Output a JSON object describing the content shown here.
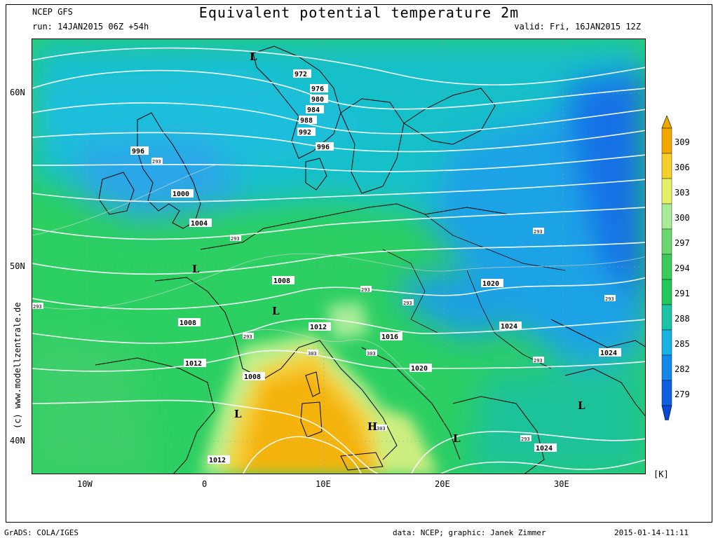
{
  "header": {
    "model": "NCEP GFS",
    "run": "run: 14JAN2015 06Z +54h",
    "title": "Equivalent potential temperature 2m",
    "valid": "valid: Fri, 16JAN2015 12Z"
  },
  "footer": {
    "grads": "GrADS: COLA/IGES",
    "credit": "data: NCEP; graphic: Janek Zimmer",
    "timestamp": "2015-01-14-11:11"
  },
  "watermark": "(c)  www.modellzentrale.de",
  "axes": {
    "lat_labels": [
      "60N",
      "50N",
      "40N"
    ],
    "lon_labels": [
      "10W",
      "0",
      "10E",
      "20E",
      "30E"
    ],
    "unit": "[K]"
  },
  "colorbar": {
    "ticks": [
      "309",
      "306",
      "303",
      "300",
      "297",
      "294",
      "291",
      "288",
      "285",
      "282",
      "279"
    ],
    "colors": [
      "#f2a800",
      "#f6cf2a",
      "#e6ef6a",
      "#a8ec98",
      "#6ad86e",
      "#3cca5a",
      "#22c65c",
      "#1bc4a5",
      "#17b2df",
      "#1487e8",
      "#0f60e0"
    ]
  },
  "isobars": {
    "labels": [
      "972",
      "976",
      "980",
      "984",
      "988",
      "992",
      "996",
      "996",
      "1000",
      "1004",
      "1008",
      "1008",
      "1008",
      "1012",
      "1012",
      "1012",
      "1016",
      "1020",
      "1020",
      "1024",
      "1024",
      "1024"
    ]
  },
  "theta_labels": [
    "293",
    "293",
    "293",
    "293",
    "293",
    "293",
    "293",
    "293",
    "293",
    "293",
    "303",
    "303",
    "303"
  ],
  "pressure_centers": [
    "L",
    "L",
    "L",
    "L",
    "L",
    "L",
    "H"
  ]
}
